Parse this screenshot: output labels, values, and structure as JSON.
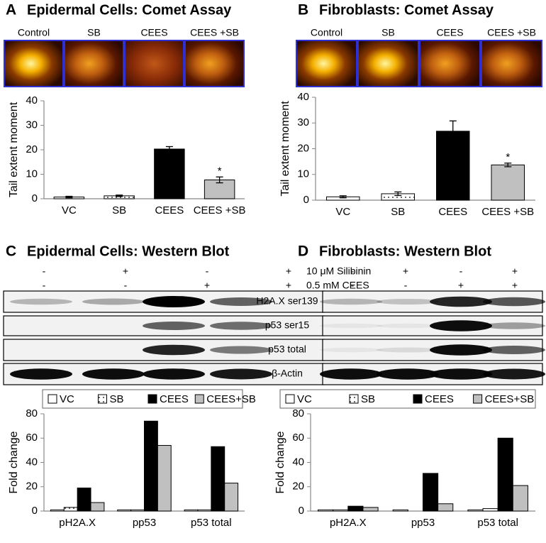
{
  "panels": [
    {
      "letter": "A",
      "title": "Epidermal Cells: Comet Assay",
      "comet_labels": [
        "Control",
        "SB",
        "CEES",
        "CEES +SB"
      ]
    },
    {
      "letter": "B",
      "title": "Fibroblasts: Comet Assay",
      "comet_labels": [
        "Control",
        "SB",
        "CEES",
        "CEES +SB"
      ]
    },
    {
      "letter": "C",
      "title": "Epidermal Cells: Western Blot"
    },
    {
      "letter": "D",
      "title": "Fibroblasts: Western Blot"
    }
  ],
  "blot": {
    "treatments": [
      {
        "label": "10 μM Silibinin",
        "signs": [
          "-",
          "+",
          "-",
          "+"
        ]
      },
      {
        "label": "0.5 mM CEES",
        "signs": [
          "-",
          "-",
          "+",
          "+"
        ]
      }
    ],
    "bands": [
      "H2A.X ser139",
      "p53 ser15",
      "p53 total",
      "β-Actin"
    ]
  },
  "chart_data": [
    {
      "type": "bar",
      "ylabel": "Tail extent moment",
      "categories": [
        "VC",
        "SB",
        "CEES",
        "CEES +SB"
      ],
      "values": [
        0.7,
        1.2,
        20.3,
        7.7
      ],
      "errors": [
        0.3,
        0.3,
        1.0,
        1.2
      ],
      "colors": [
        "#ffffff",
        "#ffffff",
        "#000000",
        "#c0c0c0"
      ],
      "hatch": [
        "none",
        "dots",
        "none",
        "none"
      ],
      "annotations": [
        {
          "text": "*",
          "category": "CEES +SB"
        }
      ],
      "ylim": [
        0,
        40
      ],
      "yticks": [
        0,
        10,
        20,
        30,
        40
      ]
    },
    {
      "type": "bar",
      "ylabel": "Tail extent moment",
      "categories": [
        "VC",
        "SB",
        "CEES",
        "CEES +SB"
      ],
      "values": [
        1.3,
        2.5,
        26.8,
        13.7
      ],
      "errors": [
        0.4,
        0.7,
        4.0,
        0.7
      ],
      "colors": [
        "#ffffff",
        "#ffffff",
        "#000000",
        "#c0c0c0"
      ],
      "hatch": [
        "none",
        "dots",
        "none",
        "none"
      ],
      "annotations": [
        {
          "text": "*",
          "category": "CEES +SB"
        }
      ],
      "ylim": [
        0,
        40
      ],
      "yticks": [
        0,
        10,
        20,
        30,
        40
      ]
    },
    {
      "type": "grouped_bar",
      "ylabel": "Fold change",
      "categories": [
        "pH2A.X",
        "pp53",
        "p53 total"
      ],
      "series": [
        {
          "name": "VC",
          "color": "#ffffff",
          "hatch": "none",
          "values": [
            1,
            1,
            1
          ]
        },
        {
          "name": "SB",
          "color": "#ffffff",
          "hatch": "dots",
          "values": [
            3,
            1,
            1
          ]
        },
        {
          "name": "CEES",
          "color": "#000000",
          "hatch": "none",
          "values": [
            19,
            74,
            53
          ]
        },
        {
          "name": "CEES+SB",
          "color": "#c0c0c0",
          "hatch": "none",
          "values": [
            7,
            54,
            23
          ]
        }
      ],
      "legend": "top",
      "ylim": [
        0,
        80
      ],
      "yticks": [
        0,
        20,
        40,
        60,
        80
      ]
    },
    {
      "type": "grouped_bar",
      "ylabel": "Fold change",
      "categories": [
        "pH2A.X",
        "pp53",
        "p53 total"
      ],
      "series": [
        {
          "name": "VC",
          "color": "#ffffff",
          "hatch": "none",
          "values": [
            1,
            1,
            1
          ]
        },
        {
          "name": "SB",
          "color": "#ffffff",
          "hatch": "dots",
          "values": [
            1,
            0,
            2
          ]
        },
        {
          "name": "CEES",
          "color": "#000000",
          "hatch": "none",
          "values": [
            4,
            31,
            60
          ]
        },
        {
          "name": "CEES+SB",
          "color": "#c0c0c0",
          "hatch": "none",
          "values": [
            3,
            6,
            21
          ]
        }
      ],
      "legend": "top",
      "ylim": [
        0,
        80
      ],
      "yticks": [
        0,
        20,
        40,
        60,
        80
      ]
    }
  ]
}
